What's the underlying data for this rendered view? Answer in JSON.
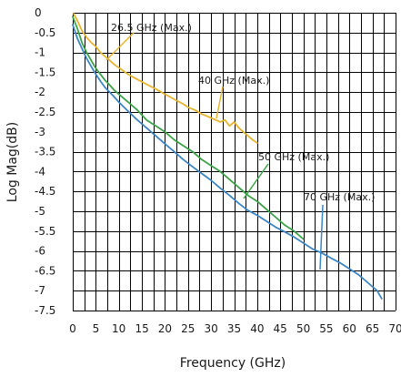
{
  "chart_data": {
    "type": "line",
    "xlabel": "Frequency (GHz)",
    "ylabel": "Log Mag(dB)",
    "xlim": [
      0,
      70
    ],
    "ylim": [
      -7.5,
      0
    ],
    "xticks": [
      0,
      5,
      10,
      15,
      20,
      25,
      30,
      35,
      40,
      45,
      50,
      55,
      60,
      65,
      70
    ],
    "yticks": [
      0,
      -0.5,
      -1,
      -1.5,
      -2,
      -2.5,
      -3,
      -3.5,
      -4,
      -4.5,
      -5,
      -5.5,
      -6,
      -6.5,
      -7,
      -7.5
    ],
    "grid": true,
    "series": [
      {
        "name": "26.5 GHz (Max.)",
        "color": "#e8b42b",
        "x": [
          0.2,
          1,
          2,
          3,
          4,
          5,
          6,
          7,
          8,
          9,
          10,
          12,
          14,
          16,
          18,
          20,
          22,
          24,
          25,
          26.5
        ],
        "y": [
          -0.02,
          -0.2,
          -0.45,
          -0.62,
          -0.75,
          -0.85,
          -1.0,
          -1.1,
          -1.2,
          -1.3,
          -1.38,
          -1.55,
          -1.68,
          -1.8,
          -1.92,
          -2.05,
          -2.18,
          -2.3,
          -2.38,
          -2.45
        ]
      },
      {
        "name": "40 GHz (Max.)",
        "color": "#e8b42b",
        "x": [
          26.5,
          28,
          30,
          32,
          33,
          34,
          35,
          36,
          37,
          38,
          39,
          40
        ],
        "y": [
          -2.45,
          -2.55,
          -2.65,
          -2.75,
          -2.7,
          -2.85,
          -2.75,
          -2.9,
          -3.0,
          -3.1,
          -3.2,
          -3.28
        ]
      },
      {
        "name": "50 GHz (Max.)",
        "color": "#3aa346",
        "x": [
          0,
          1,
          2,
          3,
          4,
          5,
          6,
          7,
          8,
          9,
          10,
          12,
          14,
          16,
          18,
          20,
          22,
          24,
          26,
          28,
          30,
          32,
          34,
          36,
          38,
          40,
          42,
          44,
          46,
          48,
          50
        ],
        "y": [
          -0.1,
          -0.4,
          -0.75,
          -1.0,
          -1.2,
          -1.4,
          -1.55,
          -1.7,
          -1.82,
          -1.95,
          -2.05,
          -2.25,
          -2.45,
          -2.7,
          -2.85,
          -3.0,
          -3.2,
          -3.35,
          -3.5,
          -3.7,
          -3.85,
          -4.0,
          -4.2,
          -4.4,
          -4.6,
          -4.75,
          -4.95,
          -5.15,
          -5.35,
          -5.5,
          -5.7
        ]
      },
      {
        "name": "70 GHz (Max.)",
        "color": "#3a86c4",
        "x": [
          0,
          1,
          2,
          3,
          4,
          5,
          6,
          7,
          8,
          9,
          10,
          12,
          14,
          16,
          18,
          20,
          22,
          24,
          26,
          28,
          30,
          32,
          34,
          36,
          38,
          40,
          42,
          44,
          46,
          48,
          50,
          52,
          54,
          56,
          58,
          60,
          62,
          64,
          66,
          67
        ],
        "y": [
          -0.3,
          -0.65,
          -0.9,
          -1.15,
          -1.35,
          -1.55,
          -1.72,
          -1.88,
          -2.0,
          -2.12,
          -2.25,
          -2.48,
          -2.7,
          -2.9,
          -3.1,
          -3.3,
          -3.5,
          -3.7,
          -3.88,
          -4.05,
          -4.22,
          -4.42,
          -4.6,
          -4.8,
          -4.98,
          -5.1,
          -5.25,
          -5.4,
          -5.52,
          -5.65,
          -5.8,
          -5.95,
          -6.05,
          -6.18,
          -6.3,
          -6.45,
          -6.6,
          -6.8,
          -7.0,
          -7.2
        ]
      }
    ]
  }
}
